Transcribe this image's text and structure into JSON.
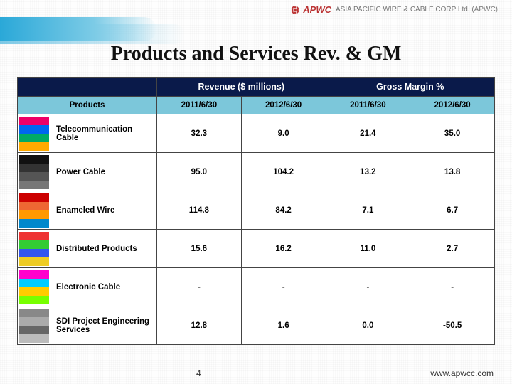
{
  "logo": {
    "brand": "APWC",
    "company": "ASIA PACIFIC WIRE & CABLE CORP Ltd. (APWC)"
  },
  "title": "Products and Services Rev. & GM",
  "table": {
    "group_headers": {
      "revenue": "Revenue ($ millions)",
      "margin": "Gross Margin %"
    },
    "sub_headers": {
      "products": "Products",
      "rev_2011": "2011/6/30",
      "rev_2012": "2012/6/30",
      "gm_2011": "2011/6/30",
      "gm_2012": "2012/6/30"
    },
    "rows": [
      {
        "name": "Telecommunication Cable",
        "rev_2011": "32.3",
        "rev_2012": "9.0",
        "gm_2011": "21.4",
        "gm_2012": "35.0",
        "thumb_colors": [
          "#e06",
          "#06e",
          "#0a6",
          "#fa0"
        ]
      },
      {
        "name": "Power Cable",
        "rev_2011": "95.0",
        "rev_2012": "104.2",
        "gm_2011": "13.2",
        "gm_2012": "13.8",
        "thumb_colors": [
          "#111",
          "#333",
          "#555",
          "#777"
        ]
      },
      {
        "name": "Enameled Wire",
        "rev_2011": "114.8",
        "rev_2012": "84.2",
        "gm_2011": "7.1",
        "gm_2012": "6.7",
        "thumb_colors": [
          "#c00",
          "#e63",
          "#f90",
          "#08c"
        ]
      },
      {
        "name": "Distributed Products",
        "rev_2011": "15.6",
        "rev_2012": "16.2",
        "gm_2011": "11.0",
        "gm_2012": "2.7",
        "thumb_colors": [
          "#e33",
          "#3c3",
          "#35e",
          "#ec2"
        ]
      },
      {
        "name": "Electronic Cable",
        "rev_2011": "-",
        "rev_2012": "-",
        "gm_2011": "-",
        "gm_2012": "-",
        "thumb_colors": [
          "#f0c",
          "#0cf",
          "#fc0",
          "#7f0"
        ]
      },
      {
        "name": "SDI Project Engineering Services",
        "rev_2011": "12.8",
        "rev_2012": "1.6",
        "gm_2011": "0.0",
        "gm_2012": "-50.5",
        "thumb_colors": [
          "#888",
          "#aaa",
          "#666",
          "#bbb"
        ]
      }
    ]
  },
  "footer": {
    "page": "4",
    "url": "www.apwcc.com"
  },
  "colors": {
    "header_bg": "#0a1a4a",
    "subheader_bg": "#7cc7da",
    "border": "#444444"
  }
}
